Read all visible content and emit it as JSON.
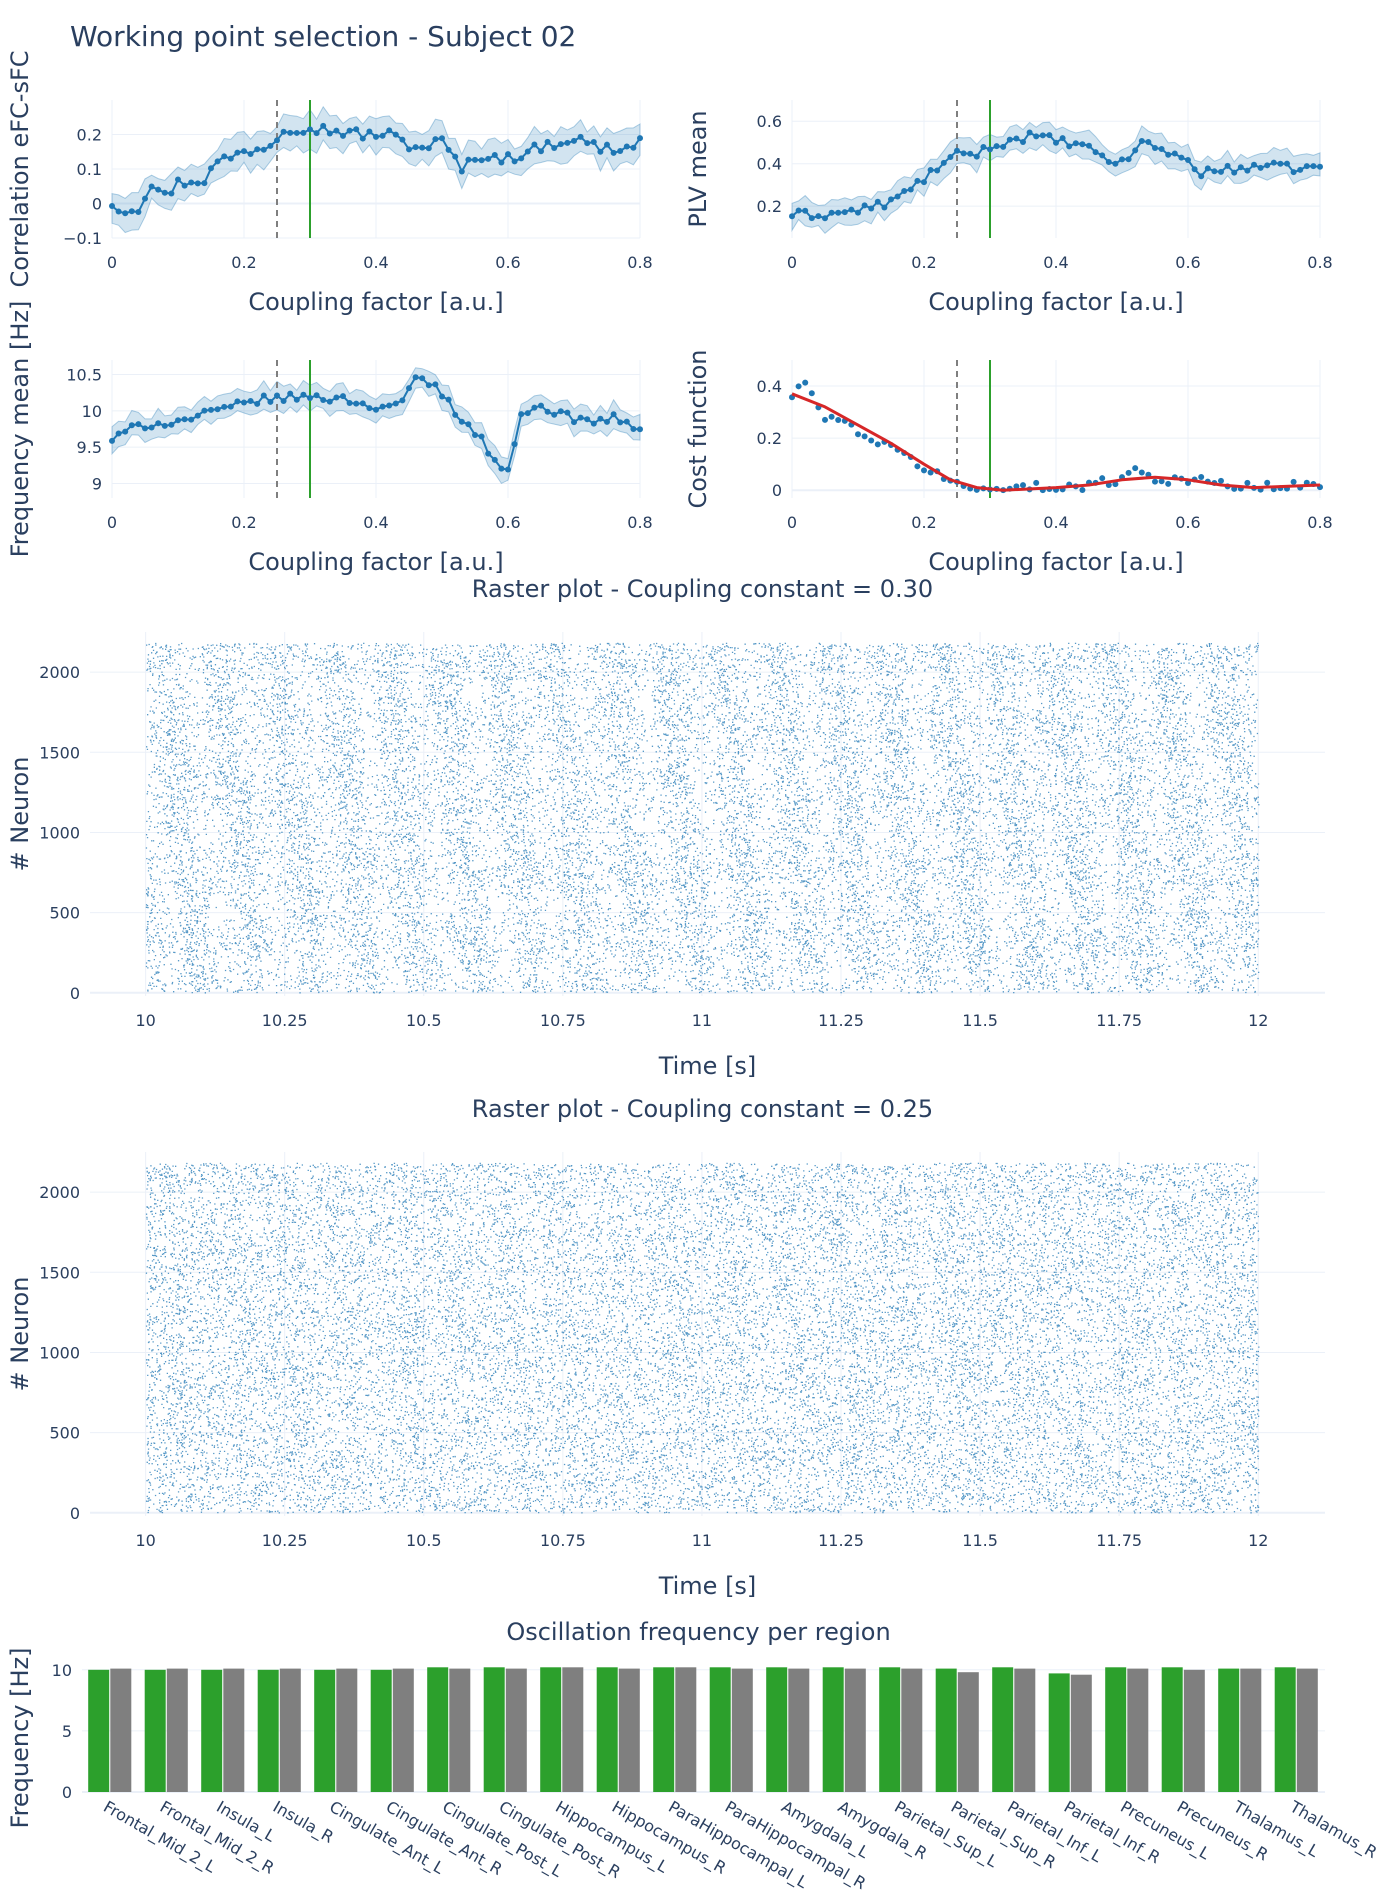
{
  "title": "Working point selection - Subject 02",
  "colors": {
    "series": "#1f77b4",
    "band": "rgba(31,119,180,0.2)",
    "fit": "#d62728",
    "selected": "#2ca02c",
    "reference": "#7f7f7f",
    "grid": "#ebf0f8",
    "text": "#2a3f5f"
  },
  "chart_data": [
    {
      "id": "correlation",
      "type": "line",
      "xlabel": "Coupling factor [a.u.]",
      "ylabel": "Correlation eFC-sFC",
      "xlim": [
        0,
        0.8
      ],
      "ylim": [
        -0.1,
        0.3
      ],
      "xticks": [
        "0",
        "0.2",
        "0.4",
        "0.6",
        "0.8"
      ],
      "xtick_values": [
        0,
        0.2,
        0.4,
        0.6,
        0.8
      ],
      "yticks": [
        "−0.1",
        "0",
        "0.1",
        "0.2"
      ],
      "ytick_values": [
        -0.1,
        0,
        0.1,
        0.2
      ],
      "vlines": {
        "dashed": 0.25,
        "solid": 0.3
      },
      "anchors": [
        [
          0,
          0
        ],
        [
          0.02,
          -0.02
        ],
        [
          0.04,
          -0.01
        ],
        [
          0.06,
          0.06
        ],
        [
          0.08,
          0.02
        ],
        [
          0.1,
          0.06
        ],
        [
          0.14,
          0.07
        ],
        [
          0.16,
          0.12
        ],
        [
          0.2,
          0.15
        ],
        [
          0.24,
          0.17
        ],
        [
          0.26,
          0.22
        ],
        [
          0.3,
          0.22
        ],
        [
          0.34,
          0.21
        ],
        [
          0.38,
          0.2
        ],
        [
          0.42,
          0.2
        ],
        [
          0.46,
          0.16
        ],
        [
          0.5,
          0.18
        ],
        [
          0.53,
          0.1
        ],
        [
          0.56,
          0.14
        ],
        [
          0.6,
          0.13
        ],
        [
          0.66,
          0.17
        ],
        [
          0.7,
          0.19
        ],
        [
          0.74,
          0.16
        ],
        [
          0.78,
          0.16
        ],
        [
          0.8,
          0.18
        ]
      ],
      "band_width": 0.045
    },
    {
      "id": "plv",
      "type": "line",
      "xlabel": "Coupling factor [a.u.]",
      "ylabel": "PLV mean",
      "xlim": [
        0,
        0.8
      ],
      "ylim": [
        0.05,
        0.7
      ],
      "xticks": [
        "0",
        "0.2",
        "0.4",
        "0.6",
        "0.8"
      ],
      "xtick_values": [
        0,
        0.2,
        0.4,
        0.6,
        0.8
      ],
      "yticks": [
        "0.2",
        "0.4",
        "0.6"
      ],
      "ytick_values": [
        0.2,
        0.4,
        0.6
      ],
      "vlines": {
        "dashed": 0.25,
        "solid": 0.3
      },
      "anchors": [
        [
          0,
          0.16
        ],
        [
          0.05,
          0.16
        ],
        [
          0.1,
          0.18
        ],
        [
          0.15,
          0.22
        ],
        [
          0.18,
          0.28
        ],
        [
          0.22,
          0.38
        ],
        [
          0.25,
          0.44
        ],
        [
          0.28,
          0.45
        ],
        [
          0.32,
          0.5
        ],
        [
          0.36,
          0.53
        ],
        [
          0.4,
          0.51
        ],
        [
          0.44,
          0.48
        ],
        [
          0.48,
          0.42
        ],
        [
          0.5,
          0.4
        ],
        [
          0.53,
          0.5
        ],
        [
          0.56,
          0.47
        ],
        [
          0.6,
          0.41
        ],
        [
          0.62,
          0.36
        ],
        [
          0.66,
          0.37
        ],
        [
          0.7,
          0.39
        ],
        [
          0.75,
          0.38
        ],
        [
          0.8,
          0.38
        ]
      ],
      "band_width": 0.06
    },
    {
      "id": "frequency",
      "type": "line",
      "xlabel": "Coupling factor [a.u.]",
      "ylabel": "Frequency mean [Hz]",
      "xlim": [
        0,
        0.8
      ],
      "ylim": [
        8.8,
        10.7
      ],
      "xticks": [
        "0",
        "0.2",
        "0.4",
        "0.6",
        "0.8"
      ],
      "xtick_values": [
        0,
        0.2,
        0.4,
        0.6,
        0.8
      ],
      "yticks": [
        "9",
        "9.5",
        "10",
        "10.5"
      ],
      "ytick_values": [
        9,
        9.5,
        10,
        10.5
      ],
      "vlines": {
        "dashed": 0.25,
        "solid": 0.3
      },
      "anchors": [
        [
          0,
          9.6
        ],
        [
          0.04,
          9.8
        ],
        [
          0.1,
          9.85
        ],
        [
          0.16,
          10
        ],
        [
          0.22,
          10.15
        ],
        [
          0.3,
          10.2
        ],
        [
          0.36,
          10.15
        ],
        [
          0.4,
          10.05
        ],
        [
          0.44,
          10.1
        ],
        [
          0.46,
          10.45
        ],
        [
          0.49,
          10.35
        ],
        [
          0.52,
          10
        ],
        [
          0.56,
          9.6
        ],
        [
          0.58,
          9.3
        ],
        [
          0.6,
          9.2
        ],
        [
          0.62,
          9.9
        ],
        [
          0.64,
          10.1
        ],
        [
          0.68,
          9.95
        ],
        [
          0.72,
          9.85
        ],
        [
          0.76,
          9.9
        ],
        [
          0.8,
          9.75
        ]
      ],
      "band_width": 0.16
    },
    {
      "id": "cost",
      "type": "line",
      "xlabel": "Coupling factor [a.u.]",
      "ylabel": "Cost function",
      "xlim": [
        0,
        0.8
      ],
      "ylim": [
        -0.03,
        0.5
      ],
      "xticks": [
        "0",
        "0.2",
        "0.4",
        "0.6",
        "0.8"
      ],
      "xtick_values": [
        0,
        0.2,
        0.4,
        0.6,
        0.8
      ],
      "yticks": [
        "0",
        "0.2",
        "0.4"
      ],
      "ytick_values": [
        0,
        0.2,
        0.4
      ],
      "vlines": {
        "dashed": 0.25,
        "solid": 0.3
      },
      "anchors": [
        [
          0,
          0.36
        ],
        [
          0.02,
          0.42
        ],
        [
          0.04,
          0.3
        ],
        [
          0.06,
          0.28
        ],
        [
          0.1,
          0.23
        ],
        [
          0.14,
          0.17
        ],
        [
          0.18,
          0.12
        ],
        [
          0.22,
          0.06
        ],
        [
          0.26,
          0.01
        ],
        [
          0.3,
          0
        ],
        [
          0.36,
          0.01
        ],
        [
          0.42,
          0.01
        ],
        [
          0.48,
          0.03
        ],
        [
          0.52,
          0.08
        ],
        [
          0.56,
          0.04
        ],
        [
          0.6,
          0.04
        ],
        [
          0.66,
          0.02
        ],
        [
          0.72,
          0.01
        ],
        [
          0.8,
          0.02
        ]
      ],
      "fit": [
        [
          0,
          0.37
        ],
        [
          0.05,
          0.32
        ],
        [
          0.1,
          0.25
        ],
        [
          0.15,
          0.18
        ],
        [
          0.2,
          0.1
        ],
        [
          0.24,
          0.04
        ],
        [
          0.28,
          0.01
        ],
        [
          0.32,
          0
        ],
        [
          0.4,
          0.01
        ],
        [
          0.45,
          0.02
        ],
        [
          0.5,
          0.04
        ],
        [
          0.55,
          0.05
        ],
        [
          0.6,
          0.04
        ],
        [
          0.65,
          0.02
        ],
        [
          0.7,
          0.01
        ],
        [
          0.8,
          0.02
        ]
      ],
      "band_width": 0.015
    },
    {
      "id": "raster-030",
      "type": "scatter",
      "title": "Raster plot - Coupling constant = 0.30",
      "xlabel": "Time [s]",
      "ylabel": "# Neuron",
      "xlim": [
        9.9,
        12.12
      ],
      "ylim": [
        -20,
        2250
      ],
      "x_range": [
        10,
        12
      ],
      "n_neurons": 2180,
      "xticks": [
        "10",
        "10.25",
        "10.5",
        "10.75",
        "11",
        "11.25",
        "11.5",
        "11.75",
        "12"
      ],
      "xtick_values": [
        10,
        10.25,
        10.5,
        10.75,
        11,
        11.25,
        11.5,
        11.75,
        12
      ],
      "yticks": [
        "0",
        "500",
        "1000",
        "1500",
        "2000"
      ],
      "ytick_values": [
        0,
        500,
        1000,
        1500,
        2000
      ],
      "rhythm_hz": 10,
      "modulation": 0.75
    },
    {
      "id": "raster-025",
      "type": "scatter",
      "title": "Raster plot - Coupling constant = 0.25",
      "xlabel": "Time [s]",
      "ylabel": "# Neuron",
      "xlim": [
        9.9,
        12.12
      ],
      "ylim": [
        -20,
        2250
      ],
      "x_range": [
        10,
        12
      ],
      "n_neurons": 2180,
      "xticks": [
        "10",
        "10.25",
        "10.5",
        "10.75",
        "11",
        "11.25",
        "11.5",
        "11.75",
        "12"
      ],
      "xtick_values": [
        10,
        10.25,
        10.5,
        10.75,
        11,
        11.25,
        11.5,
        11.75,
        12
      ],
      "yticks": [
        "0",
        "500",
        "1000",
        "1500",
        "2000"
      ],
      "ytick_values": [
        0,
        500,
        1000,
        1500,
        2000
      ],
      "rhythm_hz": 10,
      "modulation": 0.25
    },
    {
      "id": "region-frequency",
      "type": "bar",
      "title": "Oscillation frequency per region",
      "xlabel": "",
      "ylabel": "Frequency [Hz]",
      "ylim": [
        0,
        10.8
      ],
      "yticks": [
        "0",
        "5",
        "10"
      ],
      "ytick_values": [
        0,
        5,
        10
      ],
      "categories": [
        "Frontal_Mid_2_L",
        "Frontal_Mid_2_R",
        "Insula_L",
        "Insula_R",
        "Cingulate_Ant_L",
        "Cingulate_Ant_R",
        "Cingulate_Post_L",
        "Cingulate_Post_R",
        "Hippocampus_L",
        "Hippocampus_R",
        "ParaHippocampal_L",
        "ParaHippocampal_R",
        "Amygdala_L",
        "Amygdala_R",
        "Parietal_Sup_L",
        "Parietal_Sup_R",
        "Parietal_Inf_L",
        "Parietal_Inf_R",
        "Precuneus_L",
        "Precuneus_R",
        "Thalamus_L",
        "Thalamus_R"
      ],
      "series": [
        {
          "color": "#2ca02c",
          "values": [
            10.0,
            10.0,
            10.0,
            10.0,
            10.0,
            10.0,
            10.2,
            10.2,
            10.2,
            10.2,
            10.2,
            10.2,
            10.2,
            10.2,
            10.2,
            10.1,
            10.2,
            9.7,
            10.2,
            10.2,
            10.1,
            10.2
          ]
        },
        {
          "color": "#7f7f7f",
          "values": [
            10.1,
            10.1,
            10.1,
            10.1,
            10.1,
            10.1,
            10.1,
            10.1,
            10.2,
            10.1,
            10.2,
            10.1,
            10.1,
            10.1,
            10.1,
            9.8,
            10.1,
            9.6,
            10.1,
            10.0,
            10.1,
            10.1
          ]
        }
      ]
    }
  ]
}
